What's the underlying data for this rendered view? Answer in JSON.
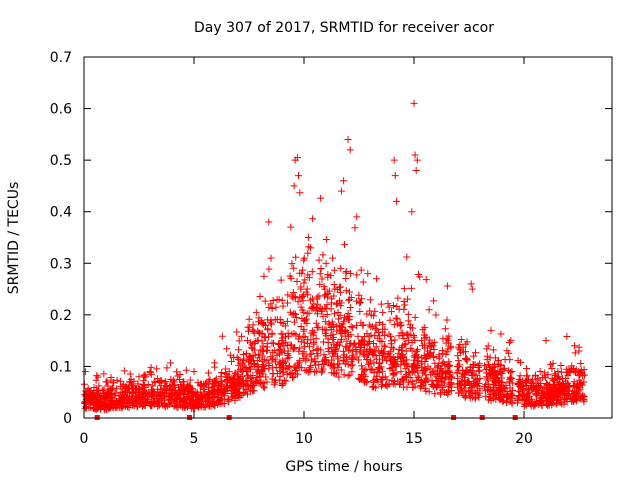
{
  "chart_data": {
    "type": "scatter",
    "title": "Day 307 of 2017, SRMTID for receiver acor",
    "xlabel": "GPS time / hours",
    "ylabel": "SRMTID / TECUs",
    "xlim": [
      0,
      24
    ],
    "ylim": [
      0,
      0.7
    ],
    "xticks": [
      0,
      5,
      10,
      15,
      20
    ],
    "yticks": [
      0,
      0.1,
      0.2,
      0.3,
      0.4,
      0.5,
      0.6,
      0.7
    ],
    "xtick_labels": [
      "0",
      "5",
      "10",
      "15",
      "20"
    ],
    "ytick_labels": [
      "0",
      "0.1",
      "0.2",
      "0.3",
      "0.4",
      "0.5",
      "0.6",
      "0.7"
    ],
    "grid": false,
    "marker": "+",
    "color": "#ff0000",
    "baseline_markers_x": [
      0.6,
      4.8,
      6.6,
      16.8,
      18.1,
      19.6
    ],
    "baseline_markers_value": 0,
    "envelope": {
      "description_hours": [
        0,
        1,
        2,
        3,
        4,
        5,
        6,
        7,
        8,
        9,
        10,
        11,
        12,
        13,
        14,
        15,
        16,
        17,
        18,
        19,
        20,
        21,
        22,
        22.7
      ],
      "typical_srmtid": [
        0.04,
        0.035,
        0.045,
        0.05,
        0.045,
        0.04,
        0.05,
        0.08,
        0.12,
        0.14,
        0.2,
        0.18,
        0.17,
        0.13,
        0.12,
        0.13,
        0.1,
        0.09,
        0.08,
        0.07,
        0.05,
        0.05,
        0.06,
        0.07
      ]
    },
    "series": [
      {
        "name": "acor",
        "x": [
          9.6,
          9.7,
          9.55,
          9.75,
          12.0,
          11.8,
          12.1,
          11.7,
          14.1,
          14.15,
          14.2,
          15.0,
          15.05,
          15.1,
          15.15,
          12.4,
          12.9,
          10.2,
          10.3,
          8.4,
          8.5,
          9.4,
          11.3,
          13.3,
          14.9,
          17.6,
          17.65,
          21.0,
          19.4,
          22.3,
          22.5,
          16.5,
          18.5,
          6.6,
          5.0,
          3.0,
          1.0,
          2.5,
          4.5,
          7.5
        ],
        "y": [
          0.5,
          0.505,
          0.45,
          0.47,
          0.54,
          0.46,
          0.52,
          0.44,
          0.5,
          0.47,
          0.42,
          0.61,
          0.51,
          0.48,
          0.5,
          0.39,
          0.28,
          0.35,
          0.33,
          0.38,
          0.31,
          0.37,
          0.31,
          0.27,
          0.4,
          0.26,
          0.25,
          0.15,
          0.15,
          0.14,
          0.13,
          0.19,
          0.17,
          0.09,
          0.09,
          0.09,
          0.07,
          0.08,
          0.07,
          0.12
        ]
      }
    ]
  }
}
